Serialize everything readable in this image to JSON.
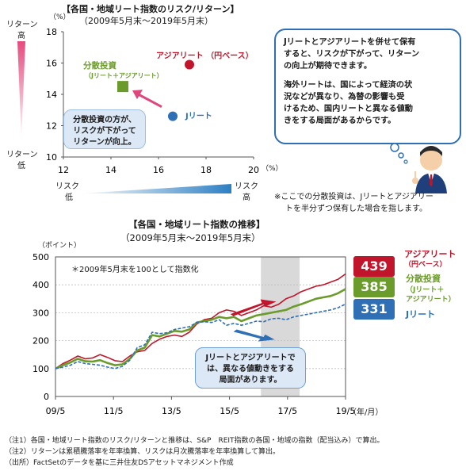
{
  "top": {
    "title_line1": "【各国・地域リート指数のリスク/リターン】",
    "title_line2": "（2009年5月末～2019年5月末）",
    "y_unit": "（%）",
    "x_unit": "（%）",
    "return_label_top_1": "リターン",
    "return_label_top_2": "高",
    "return_label_bottom_1": "リターン",
    "return_label_bottom_2": "低",
    "risk_left_1": "リスク",
    "risk_left_2": "低",
    "risk_right_1": "リスク",
    "risk_right_2": "高",
    "callout_1": "分散投資の方が、",
    "callout_2": "リスクが下がって",
    "callout_3": "リターンが向上。",
    "speech_1": "Jリートとアジアリートを併せて保有",
    "speech_2": "すると、リスクが下がって、リターン",
    "speech_3": "の向上が期待できます。",
    "speech_4": "海外リートは、国によって経済の状",
    "speech_5": "況などが異なり、為替の影響も受",
    "speech_6": "けるため、国内リートと異なる値動",
    "speech_7": "きをする局面があるからです。",
    "footnote_1": "※ここでの分散投資は、Jリートとアジアリー",
    "footnote_2": "トを半分ずつ保有した場合を指します。",
    "colors": {
      "asia": "#c0152a",
      "dist": "#6b9c2b",
      "j": "#2f6fb5",
      "pink": "#e0457b"
    }
  },
  "bottom": {
    "title_line1": "【各国・地域リート指数の推移】",
    "title_line2": "（2009年5月末～2019年5月末）",
    "y_unit": "（ポイント）",
    "x_unit": "（年/月）",
    "index_note": "＊2009年5月末を100として指数化",
    "callout_1": "Jリートとアジアリートで",
    "callout_2": "は、異なる値動きをする",
    "callout_3": "局面があります。",
    "asia_value": "439",
    "dist_value": "385",
    "j_value": "331",
    "asia_label_1": "アジアリート",
    "asia_label_2": "（円ベース）",
    "dist_label_1": "分散投資",
    "dist_label_2": "（Jリート＋",
    "dist_label_3": "アジアリート",
    "dist_label_4": "）",
    "j_label": "Jリート"
  },
  "notes": {
    "n1": "（注1）各国・地域リート指数のリスク/リターンと推移は、S&P　REIT指数の各国・地域の指数（配当込み）で算出。",
    "n2": "（注2）リターンは累積騰落率を年率換算、リスクは月次騰落率を年率換算して算出。",
    "n3": "（出所）FactSetのデータを基に三井住友DSアセットマネジメント作成"
  },
  "chart_data": [
    {
      "type": "scatter",
      "title": "【各国・地域リート指数のリスク/リターン】",
      "subtitle": "（2009年5月末～2019年5月末）",
      "xlabel": "（%）",
      "ylabel": "（%）",
      "xlim": [
        12,
        20
      ],
      "ylim": [
        10,
        18
      ],
      "x_ticks": [
        12,
        14,
        16,
        18,
        20
      ],
      "y_ticks": [
        10,
        12,
        14,
        16,
        18
      ],
      "grid": false,
      "points": [
        {
          "name": "アジアリート（円ベース）",
          "x": 17.3,
          "y": 15.9,
          "color": "#c0152a",
          "marker": "circle"
        },
        {
          "name": "分散投資（Jリート＋アジアリート）",
          "x": 14.5,
          "y": 14.5,
          "color": "#6b9c2b",
          "marker": "square"
        },
        {
          "name": "Jリート",
          "x": 16.6,
          "y": 12.6,
          "color": "#2f6fb5",
          "marker": "circle"
        }
      ]
    },
    {
      "type": "line",
      "title": "【各国・地域リート指数の推移】",
      "subtitle": "（2009年5月末～2019年5月末）",
      "ylabel": "（ポイント）",
      "xlabel": "（年/月）",
      "x_ticks": [
        "09/5",
        "11/5",
        "13/5",
        "15/5",
        "17/5",
        "19/5"
      ],
      "ylim": [
        0,
        500
      ],
      "y_ticks": [
        0,
        100,
        200,
        300,
        400,
        500
      ],
      "grid": true,
      "shaded_region": {
        "from": "16/6",
        "to": "17/10"
      },
      "end_values": {
        "アジアリート": 439,
        "分散投資": 385,
        "Jリート": 331
      },
      "series": [
        {
          "name": "アジアリート（円ベース）",
          "color": "#c0152a",
          "values": [
            100,
            118,
            130,
            145,
            135,
            138,
            150,
            140,
            128,
            125,
            145,
            160,
            165,
            190,
            205,
            215,
            220,
            215,
            230,
            260,
            275,
            280,
            300,
            310,
            305,
            290,
            300,
            310,
            325,
            320,
            330,
            350,
            360,
            375,
            385,
            395,
            400,
            410,
            420,
            439
          ]
        },
        {
          "name": "分散投資（Jリート＋アジアリート）",
          "color": "#6b9c2b",
          "values": [
            100,
            112,
            122,
            135,
            126,
            125,
            130,
            120,
            112,
            115,
            135,
            165,
            175,
            220,
            215,
            225,
            235,
            232,
            240,
            265,
            270,
            275,
            285,
            280,
            285,
            270,
            280,
            290,
            295,
            300,
            305,
            310,
            322,
            330,
            340,
            350,
            355,
            360,
            370,
            385
          ]
        },
        {
          "name": "Jリート",
          "color": "#2f6fb5",
          "values": [
            100,
            105,
            112,
            125,
            118,
            115,
            112,
            105,
            100,
            108,
            130,
            175,
            185,
            230,
            225,
            228,
            240,
            245,
            250,
            265,
            268,
            265,
            275,
            255,
            262,
            255,
            262,
            270,
            268,
            278,
            280,
            275,
            285,
            290,
            295,
            300,
            305,
            310,
            318,
            331
          ]
        }
      ]
    }
  ]
}
